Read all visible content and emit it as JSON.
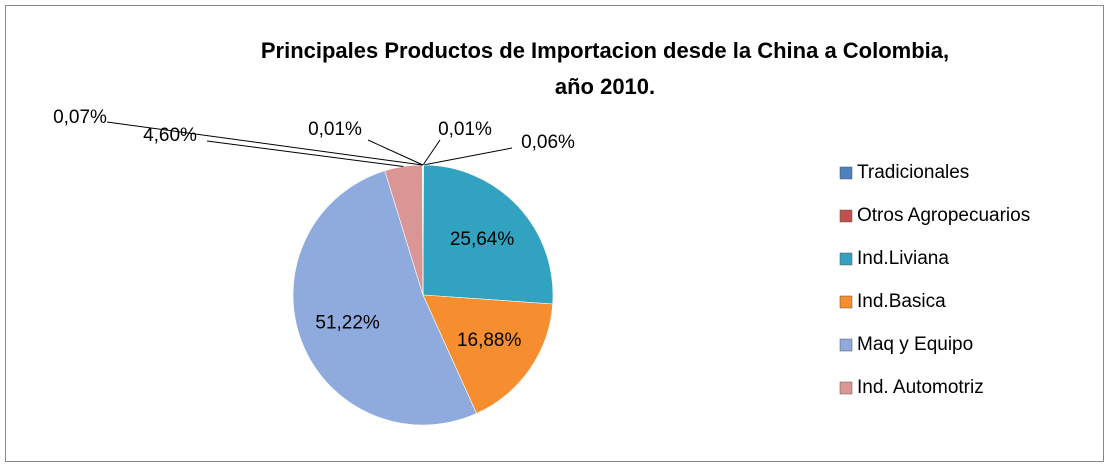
{
  "chart_data": {
    "type": "pie",
    "title": "Principales Productos de Importacion desde la China a Colombia, año 2010.",
    "categories": [
      "Tradicionales",
      "Otros Agropecuarios",
      "Ind.Liviana",
      "Ind.Basica",
      "Maq y Equipo",
      "Ind. Automotriz",
      null,
      null
    ],
    "values": [
      0.01,
      0.06,
      25.64,
      16.88,
      51.22,
      4.6,
      0.07,
      0.01
    ],
    "value_labels": [
      "0,01%",
      "0,06%",
      "25,64%",
      "16,88%",
      "51,22%",
      "4,60%",
      "0,07%",
      "0,01%"
    ],
    "colors": [
      "#4f81bd",
      "#c0504d",
      "#31a3c1",
      "#f68d2e",
      "#8faadc",
      "#d99694",
      "#9bbb59",
      "#8064a2"
    ],
    "legend": "right"
  }
}
